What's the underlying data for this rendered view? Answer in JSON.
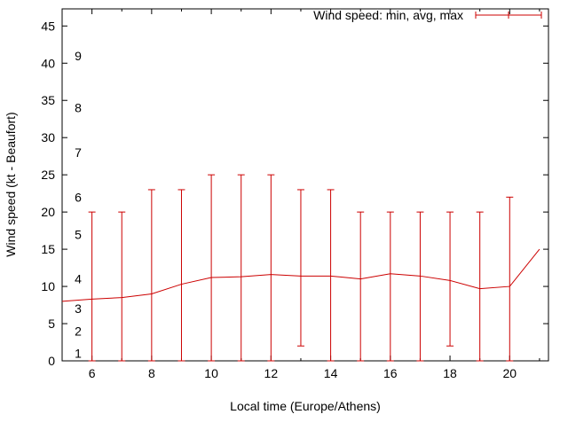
{
  "chart_data": {
    "type": "line",
    "subtype": "line-with-errorbars",
    "title": "",
    "xlabel": "Local time (Europe/Athens)",
    "ylabel": "Wind speed (kt - Beaufort)",
    "legend_label": "Wind speed: min, avg, max",
    "legend_position": "top-right-inside",
    "grid": false,
    "xlim": [
      5,
      21.3
    ],
    "ylim": [
      0,
      47.3
    ],
    "xticks": [
      6,
      8,
      10,
      12,
      14,
      16,
      18,
      20
    ],
    "xticks_minor": [
      5,
      7,
      9,
      11,
      13,
      15,
      17,
      19,
      21
    ],
    "yticks": [
      0,
      5,
      10,
      15,
      20,
      25,
      30,
      35,
      40,
      45
    ],
    "beaufort_labels": [
      {
        "label": "1",
        "kt": 1
      },
      {
        "label": "2",
        "kt": 4
      },
      {
        "label": "3",
        "kt": 7
      },
      {
        "label": "4",
        "kt": 11
      },
      {
        "label": "5",
        "kt": 17
      },
      {
        "label": "6",
        "kt": 22
      },
      {
        "label": "7",
        "kt": 28
      },
      {
        "label": "8",
        "kt": 34
      },
      {
        "label": "9",
        "kt": 41
      }
    ],
    "series": [
      {
        "name": "avg",
        "style": "line",
        "x": [
          5,
          6,
          7,
          8,
          9,
          10,
          11,
          12,
          13,
          14,
          15,
          16,
          17,
          18,
          19,
          20,
          21
        ],
        "y": [
          8,
          8.3,
          8.5,
          9,
          10.3,
          11.2,
          11.3,
          11.6,
          11.4,
          11.4,
          11,
          11.7,
          11.4,
          10.8,
          9.7,
          10,
          15
        ]
      },
      {
        "name": "min-max",
        "style": "errorbars",
        "points": [
          {
            "x": 6,
            "min": 0,
            "max": 20
          },
          {
            "x": 7,
            "min": 0,
            "max": 20
          },
          {
            "x": 8,
            "min": 0,
            "max": 23
          },
          {
            "x": 9,
            "min": 0,
            "max": 23
          },
          {
            "x": 10,
            "min": 0,
            "max": 25
          },
          {
            "x": 11,
            "min": 0,
            "max": 25
          },
          {
            "x": 12,
            "min": 0,
            "max": 25
          },
          {
            "x": 13,
            "min": 2,
            "max": 23
          },
          {
            "x": 14,
            "min": 0,
            "max": 23
          },
          {
            "x": 15,
            "min": 0,
            "max": 20
          },
          {
            "x": 16,
            "min": 0,
            "max": 20
          },
          {
            "x": 17,
            "min": 0,
            "max": 20
          },
          {
            "x": 18,
            "min": 2,
            "max": 20
          },
          {
            "x": 19,
            "min": 0,
            "max": 20
          },
          {
            "x": 20,
            "min": 0,
            "max": 22
          }
        ]
      }
    ],
    "colors": {
      "series": "#cc0000",
      "axis": "#000000",
      "text": "#000000",
      "background": "#ffffff"
    }
  }
}
